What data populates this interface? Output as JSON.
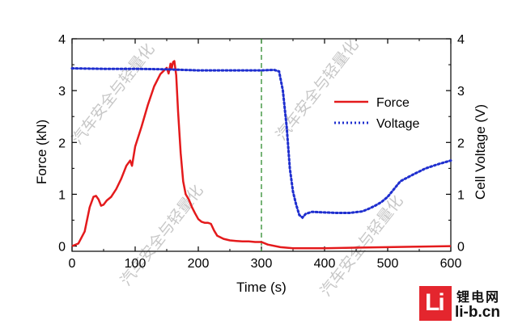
{
  "chart_data": {
    "type": "line",
    "title": "",
    "xlabel": "Time (s)",
    "ylabel": "Force (kN)",
    "y2label": "Cell Voltage (V)",
    "xlim": [
      0,
      600
    ],
    "ylim": [
      -0.1,
      4
    ],
    "y2lim": [
      -0.1,
      4
    ],
    "x_ticks": [
      "0",
      "100",
      "200",
      "300",
      "400",
      "500",
      "600"
    ],
    "y_ticks": [
      "0",
      "1",
      "2",
      "3",
      "4"
    ],
    "y2_ticks": [
      "0",
      "1",
      "2",
      "3",
      "4"
    ],
    "vline": {
      "x": 300,
      "color": "#2e8b2e",
      "style": "dashed"
    },
    "legend_position": "center-right",
    "series": [
      {
        "name": "Force",
        "axis": "left",
        "color": "#e41a1c",
        "style": "solid",
        "x": [
          0,
          10,
          20,
          28,
          34,
          38,
          42,
          46,
          50,
          55,
          62,
          70,
          78,
          86,
          92,
          95,
          100,
          110,
          120,
          130,
          140,
          145,
          150,
          153,
          156,
          158,
          160,
          162,
          165,
          168,
          172,
          176,
          180,
          185,
          190,
          195,
          200,
          205,
          210,
          215,
          220,
          225,
          230,
          240,
          250,
          260,
          270,
          280,
          290,
          300,
          310,
          330,
          350,
          400,
          450,
          500,
          550,
          600
        ],
        "y": [
          0.0,
          0.05,
          0.28,
          0.75,
          0.95,
          0.97,
          0.9,
          0.78,
          0.8,
          0.88,
          0.95,
          1.1,
          1.3,
          1.55,
          1.65,
          1.55,
          1.92,
          2.3,
          2.72,
          3.08,
          3.32,
          3.38,
          3.44,
          3.33,
          3.52,
          3.43,
          3.55,
          3.57,
          3.3,
          2.6,
          1.8,
          1.25,
          1.0,
          0.9,
          0.75,
          0.63,
          0.52,
          0.47,
          0.45,
          0.45,
          0.43,
          0.3,
          0.2,
          0.14,
          0.11,
          0.1,
          0.09,
          0.09,
          0.08,
          0.08,
          0.03,
          -0.02,
          -0.04,
          -0.04,
          -0.03,
          -0.02,
          -0.01,
          0.0
        ]
      },
      {
        "name": "Voltage",
        "axis": "right",
        "color": "#1f2fcf",
        "style": "dotted",
        "x": [
          0,
          50,
          100,
          150,
          200,
          250,
          300,
          320,
          328,
          334,
          340,
          345,
          350,
          355,
          360,
          365,
          370,
          380,
          400,
          420,
          440,
          460,
          470,
          480,
          490,
          500,
          510,
          520,
          540,
          560,
          580,
          600
        ],
        "y": [
          3.43,
          3.42,
          3.42,
          3.41,
          3.39,
          3.39,
          3.39,
          3.4,
          3.37,
          3.0,
          2.3,
          1.5,
          1.05,
          0.8,
          0.6,
          0.55,
          0.62,
          0.66,
          0.65,
          0.64,
          0.64,
          0.67,
          0.72,
          0.78,
          0.85,
          0.95,
          1.1,
          1.25,
          1.38,
          1.5,
          1.58,
          1.65
        ]
      }
    ]
  },
  "watermark": "汽车安全与轻量化",
  "logo": {
    "mark": "Li",
    "name_cn": "锂电网",
    "domain": "li-b.cn"
  }
}
